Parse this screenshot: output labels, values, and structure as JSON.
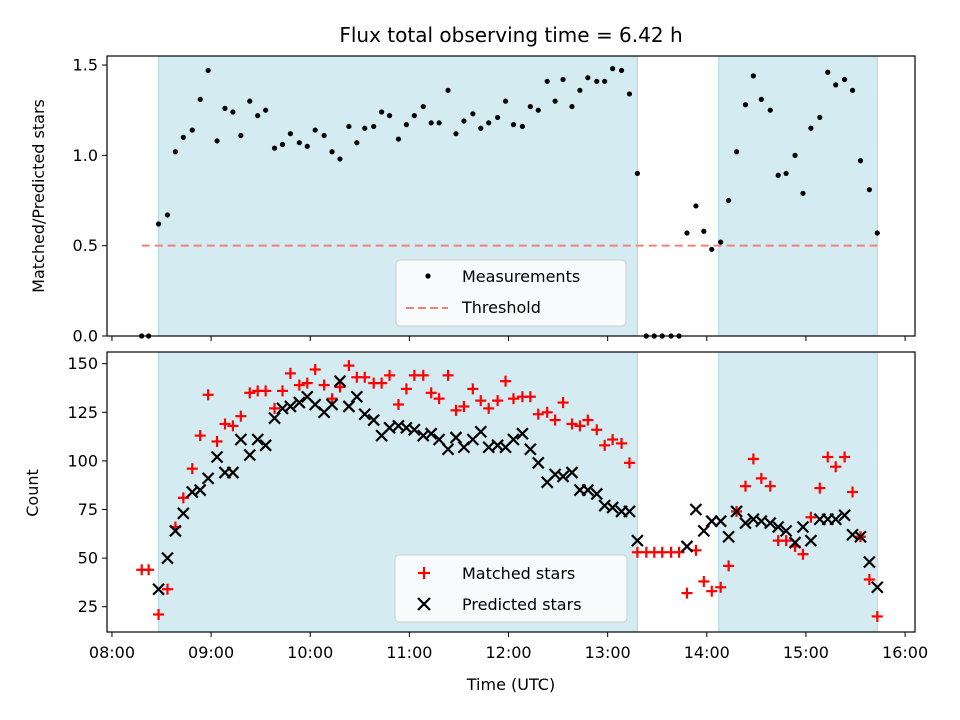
{
  "chart_data": [
    {
      "type": "scatter",
      "title": "Flux total observing time = 6.42 h",
      "ylabel": "Matched/Predicted stars",
      "ylim": [
        0,
        1.55
      ],
      "yticks": [
        0.0,
        0.5,
        1.0,
        1.5
      ],
      "ytick_labels": [
        "0.0",
        "0.5",
        "1.0",
        "1.5"
      ],
      "x_unit": "hours (UTC)",
      "xlim": [
        7.95,
        16.1
      ],
      "grid": false,
      "legend_position": "lower-center",
      "shaded_spans": [
        [
          8.47,
          13.3
        ],
        [
          14.12,
          15.72
        ]
      ],
      "span_color": "#d4ebf1",
      "series": [
        {
          "name": "Measurements",
          "marker": "dot",
          "color": "#000000",
          "x": [
            8.3,
            8.37,
            8.47,
            8.56,
            8.64,
            8.72,
            8.81,
            8.89,
            8.97,
            9.06,
            9.14,
            9.22,
            9.3,
            9.39,
            9.47,
            9.55,
            9.64,
            9.72,
            9.8,
            9.89,
            9.97,
            10.05,
            10.14,
            10.22,
            10.3,
            10.39,
            10.47,
            10.55,
            10.64,
            10.72,
            10.8,
            10.89,
            10.97,
            11.05,
            11.14,
            11.22,
            11.3,
            11.39,
            11.47,
            11.55,
            11.64,
            11.72,
            11.8,
            11.89,
            11.97,
            12.05,
            12.14,
            12.22,
            12.3,
            12.39,
            12.47,
            12.55,
            12.64,
            12.72,
            12.8,
            12.89,
            12.97,
            13.05,
            13.14,
            13.22,
            13.3,
            13.39,
            13.47,
            13.55,
            13.64,
            13.72,
            13.8,
            13.89,
            13.97,
            14.05,
            14.14,
            14.22,
            14.3,
            14.39,
            14.47,
            14.55,
            14.64,
            14.72,
            14.8,
            14.89,
            14.97,
            15.05,
            15.14,
            15.22,
            15.3,
            15.39,
            15.47,
            15.55,
            15.64,
            15.72
          ],
          "y": [
            0.0,
            0.0,
            0.62,
            0.67,
            1.02,
            1.1,
            1.14,
            1.31,
            1.47,
            1.08,
            1.26,
            1.24,
            1.11,
            1.3,
            1.22,
            1.25,
            1.04,
            1.06,
            1.12,
            1.07,
            1.05,
            1.14,
            1.11,
            1.02,
            0.98,
            1.16,
            1.07,
            1.15,
            1.16,
            1.24,
            1.22,
            1.09,
            1.17,
            1.22,
            1.27,
            1.18,
            1.18,
            1.36,
            1.12,
            1.19,
            1.23,
            1.15,
            1.18,
            1.21,
            1.3,
            1.17,
            1.16,
            1.27,
            1.25,
            1.41,
            1.3,
            1.42,
            1.27,
            1.36,
            1.43,
            1.41,
            1.41,
            1.48,
            1.47,
            1.34,
            0.9,
            0.0,
            0.0,
            0.0,
            0.0,
            0.0,
            0.57,
            0.72,
            0.58,
            0.48,
            0.52,
            0.75,
            1.02,
            1.28,
            1.44,
            1.31,
            1.25,
            0.89,
            0.9,
            1.0,
            0.79,
            1.15,
            1.21,
            1.46,
            1.39,
            1.42,
            1.36,
            0.97,
            0.81,
            0.57
          ]
        },
        {
          "name": "Threshold",
          "type": "line",
          "style": "dashed",
          "color": "#f08080",
          "x": [
            8.3,
            15.72
          ],
          "y": [
            0.5,
            0.5
          ]
        }
      ]
    },
    {
      "type": "scatter",
      "title": "",
      "xlabel": "Time (UTC)",
      "ylabel": "Count",
      "ylim": [
        12,
        156
      ],
      "yticks": [
        25,
        50,
        75,
        100,
        125,
        150
      ],
      "ytick_labels": [
        "25",
        "50",
        "75",
        "100",
        "125",
        "150"
      ],
      "x_unit": "hours (UTC)",
      "xlim": [
        7.95,
        16.1
      ],
      "xticks": [
        8,
        9,
        10,
        11,
        12,
        13,
        14,
        15,
        16
      ],
      "xtick_labels": [
        "08:00",
        "09:00",
        "10:00",
        "11:00",
        "12:00",
        "13:00",
        "14:00",
        "15:00",
        "16:00"
      ],
      "grid": false,
      "legend_position": "lower-center",
      "shaded_spans": [
        [
          8.47,
          13.3
        ],
        [
          14.12,
          15.72
        ]
      ],
      "span_color": "#d4ebf1",
      "series": [
        {
          "name": "Matched stars",
          "marker": "plus",
          "color": "#ff0000",
          "x": [
            8.3,
            8.37,
            8.47,
            8.56,
            8.64,
            8.72,
            8.81,
            8.89,
            8.97,
            9.06,
            9.14,
            9.22,
            9.3,
            9.39,
            9.47,
            9.55,
            9.64,
            9.72,
            9.8,
            9.89,
            9.97,
            10.05,
            10.14,
            10.22,
            10.3,
            10.39,
            10.47,
            10.55,
            10.64,
            10.72,
            10.8,
            10.89,
            10.97,
            11.05,
            11.14,
            11.22,
            11.3,
            11.39,
            11.47,
            11.55,
            11.64,
            11.72,
            11.8,
            11.89,
            11.97,
            12.05,
            12.14,
            12.22,
            12.3,
            12.39,
            12.47,
            12.55,
            12.64,
            12.72,
            12.8,
            12.89,
            12.97,
            13.05,
            13.14,
            13.22,
            13.3,
            13.39,
            13.47,
            13.55,
            13.64,
            13.72,
            13.8,
            13.89,
            13.97,
            14.05,
            14.14,
            14.22,
            14.3,
            14.39,
            14.47,
            14.55,
            14.64,
            14.72,
            14.8,
            14.89,
            14.97,
            15.05,
            15.14,
            15.22,
            15.3,
            15.39,
            15.47,
            15.55,
            15.64,
            15.72
          ],
          "y": [
            44,
            44,
            21,
            34,
            66,
            81,
            96,
            113,
            134,
            110,
            119,
            118,
            123,
            135,
            136,
            136,
            127,
            136,
            145,
            139,
            140,
            147,
            139,
            132,
            138,
            149,
            143,
            143,
            140,
            140,
            144,
            129,
            137,
            144,
            144,
            135,
            132,
            144,
            126,
            128,
            137,
            131,
            127,
            131,
            141,
            132,
            133,
            133,
            124,
            125,
            121,
            130,
            119,
            118,
            121,
            116,
            108,
            111,
            109,
            99,
            53,
            53,
            53,
            53,
            53,
            53,
            32,
            54,
            38,
            33,
            35,
            46,
            74,
            87,
            101,
            91,
            87,
            59,
            59,
            56,
            52,
            71,
            86,
            102,
            97,
            102,
            84,
            61,
            39,
            20
          ]
        },
        {
          "name": "Predicted stars",
          "marker": "x",
          "color": "#000000",
          "x": [
            8.47,
            8.56,
            8.64,
            8.72,
            8.81,
            8.89,
            8.97,
            9.06,
            9.14,
            9.22,
            9.3,
            9.39,
            9.47,
            9.55,
            9.64,
            9.72,
            9.8,
            9.89,
            9.97,
            10.05,
            10.14,
            10.22,
            10.3,
            10.39,
            10.47,
            10.55,
            10.64,
            10.72,
            10.8,
            10.89,
            10.97,
            11.05,
            11.14,
            11.22,
            11.3,
            11.39,
            11.47,
            11.55,
            11.64,
            11.72,
            11.8,
            11.89,
            11.97,
            12.05,
            12.14,
            12.22,
            12.3,
            12.39,
            12.47,
            12.55,
            12.64,
            12.72,
            12.8,
            12.89,
            12.97,
            13.05,
            13.14,
            13.22,
            13.3,
            13.8,
            13.89,
            13.97,
            14.05,
            14.14,
            14.22,
            14.3,
            14.39,
            14.47,
            14.55,
            14.64,
            14.72,
            14.8,
            14.89,
            14.97,
            15.05,
            15.14,
            15.22,
            15.3,
            15.39,
            15.47,
            15.55,
            15.64,
            15.72
          ],
          "y": [
            34,
            50,
            64,
            73,
            84,
            85,
            91,
            102,
            94,
            94,
            111,
            103,
            111,
            108,
            122,
            127,
            128,
            130,
            133,
            129,
            125,
            129,
            141,
            128,
            133,
            124,
            121,
            113,
            117,
            118,
            117,
            116,
            113,
            114,
            111,
            106,
            112,
            107,
            111,
            115,
            107,
            108,
            107,
            111,
            114,
            106,
            99,
            89,
            93,
            92,
            94,
            85,
            85,
            83,
            77,
            76,
            74,
            74,
            59,
            56,
            75,
            64,
            69,
            69,
            61,
            74,
            68,
            70,
            69,
            68,
            66,
            64,
            58,
            66,
            59,
            70,
            70,
            70,
            72,
            62,
            61,
            48,
            35
          ]
        }
      ]
    }
  ]
}
